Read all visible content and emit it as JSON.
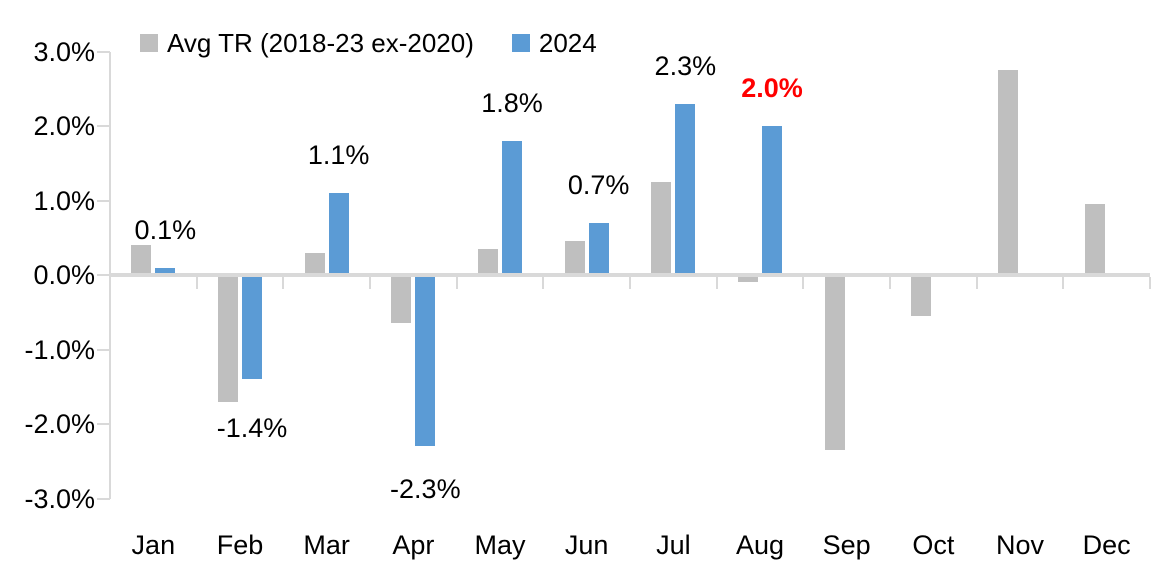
{
  "chart_data": {
    "type": "bar",
    "title": "",
    "xlabel": "",
    "ylabel": "",
    "categories": [
      "Jan",
      "Feb",
      "Mar",
      "Apr",
      "May",
      "Jun",
      "Jul",
      "Aug",
      "Sep",
      "Oct",
      "Nov",
      "Dec"
    ],
    "series": [
      {
        "name": "Avg TR (2018-23 ex-2020)",
        "key": "avg-tr",
        "color": "#BFBFBF",
        "values": [
          0.4,
          -1.7,
          0.3,
          -0.65,
          0.35,
          0.45,
          1.25,
          -0.1,
          -2.35,
          -0.55,
          2.75,
          0.95
        ]
      },
      {
        "name": "2024",
        "key": "2024",
        "color": "#5B9BD5",
        "values": [
          0.1,
          -1.4,
          1.1,
          -2.3,
          1.8,
          0.7,
          2.3,
          2.0,
          null,
          null,
          null,
          null
        ],
        "data_labels": [
          {
            "text": "0.1%",
            "color": "#000000",
            "bold": false
          },
          {
            "text": "-1.4%",
            "color": "#000000",
            "bold": false
          },
          {
            "text": "1.1%",
            "color": "#000000",
            "bold": false
          },
          {
            "text": "-2.3%",
            "color": "#000000",
            "bold": false
          },
          {
            "text": "1.8%",
            "color": "#000000",
            "bold": false
          },
          {
            "text": "0.7%",
            "color": "#000000",
            "bold": false
          },
          {
            "text": "2.3%",
            "color": "#000000",
            "bold": false
          },
          {
            "text": "2.0%",
            "color": "#FF0000",
            "bold": true
          },
          null,
          null,
          null,
          null
        ]
      }
    ],
    "ylim": [
      -3,
      3
    ],
    "yticks": [
      {
        "value": 3,
        "label": "3.0%"
      },
      {
        "value": 2,
        "label": "2.0%"
      },
      {
        "value": 1,
        "label": "1.0%"
      },
      {
        "value": 0,
        "label": "0.0%"
      },
      {
        "value": -1,
        "label": "-1.0%"
      },
      {
        "value": -2,
        "label": "-2.0%"
      },
      {
        "value": -3,
        "label": "-3.0%"
      }
    ],
    "grid": "off",
    "legend_position": "top"
  },
  "colors": {
    "axis": "#D9D9D9",
    "text": "#000000",
    "background": "#FFFFFF",
    "highlight": "#FF0000"
  }
}
